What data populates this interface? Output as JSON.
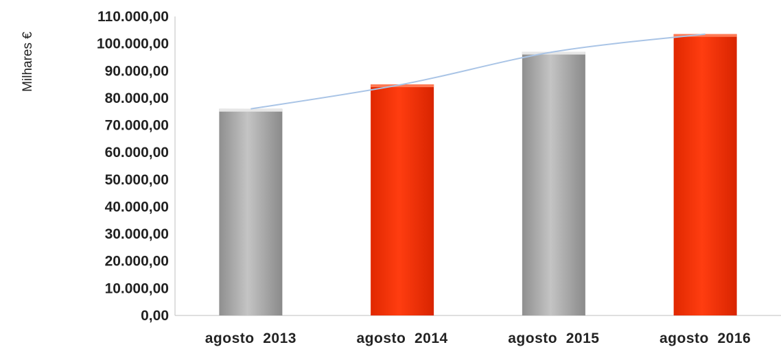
{
  "chart_data": {
    "type": "bar",
    "ylabel": "Milhares €",
    "categories": [
      "agosto  2013",
      "agosto  2014",
      "agosto  2015",
      "agosto  2016"
    ],
    "values": [
      76000,
      85000,
      97000,
      103500
    ],
    "bar_colors": [
      "#a8a8a8",
      "#ff3300",
      "#a8a8a8",
      "#ff3300"
    ],
    "trendline_color": "#a9c4e6",
    "trendline": "smooth",
    "ylim": [
      0,
      110000
    ],
    "yticks": [
      0,
      10000,
      20000,
      30000,
      40000,
      50000,
      60000,
      70000,
      80000,
      90000,
      100000,
      110000
    ],
    "ytick_labels": [
      "0,00",
      "10.000,00",
      "20.000,00",
      "30.000,00",
      "40.000,00",
      "50.000,00",
      "60.000,00",
      "70.000,00",
      "80.000,00",
      "90.000,00",
      "100.000,00",
      "110.000,00"
    ],
    "grid": false,
    "legend": "none"
  }
}
